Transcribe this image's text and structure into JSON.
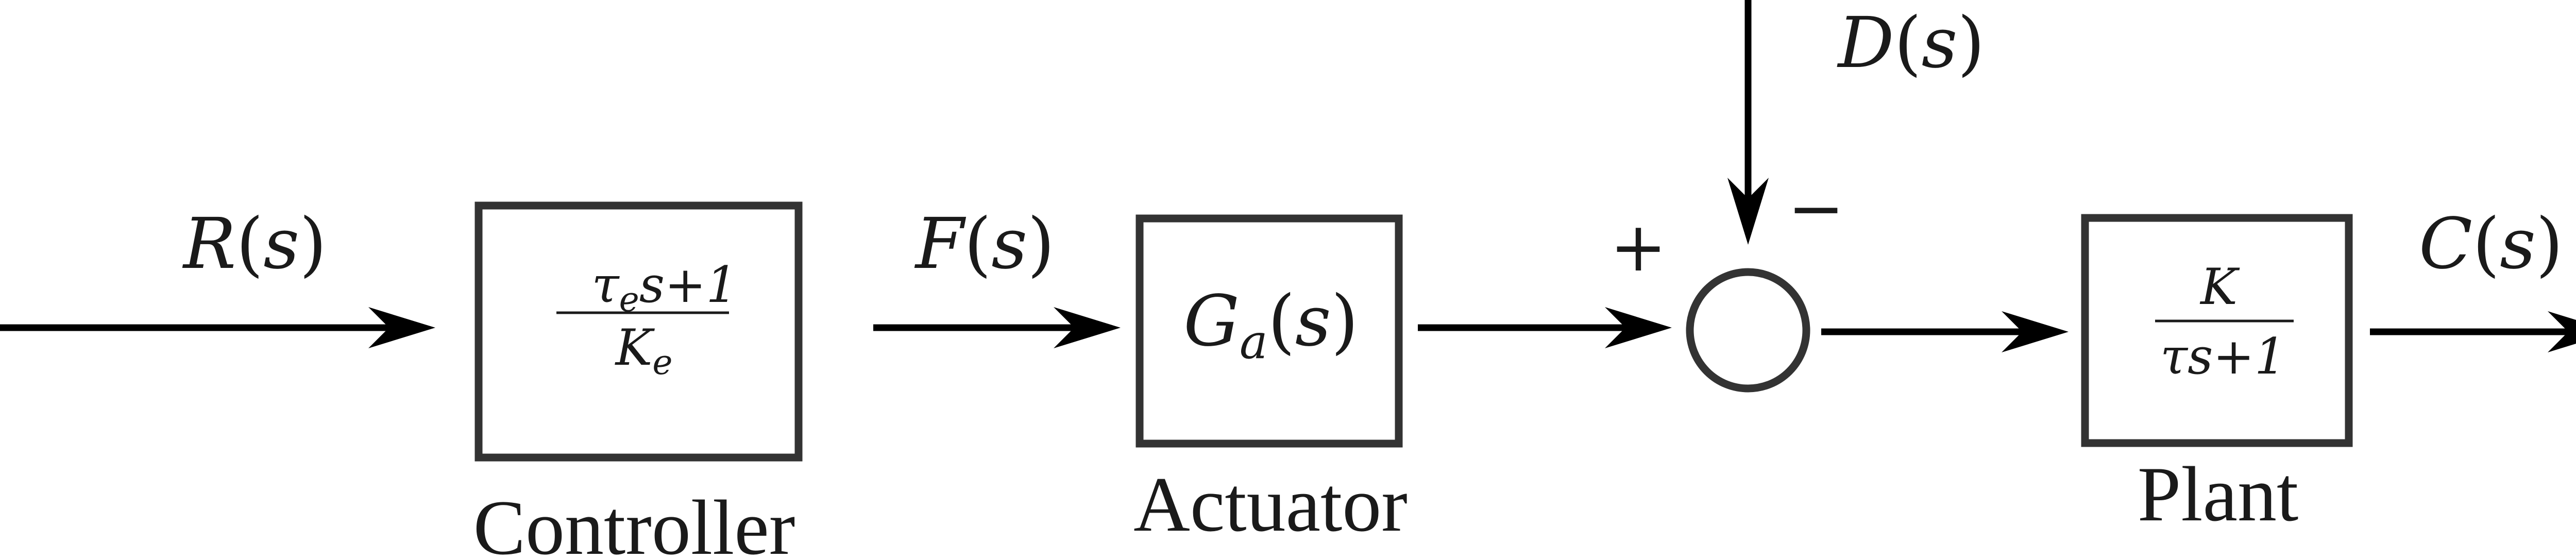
{
  "signals": {
    "reference": {
      "fn": "R",
      "arg": "s"
    },
    "feedforward": {
      "fn": "F",
      "arg": "s"
    },
    "disturbance": {
      "fn": "D",
      "arg": "s"
    },
    "output": {
      "fn": "C",
      "arg": "s"
    }
  },
  "blocks": {
    "controller": {
      "numerator": {
        "tau": "τ",
        "tau_sub": "e",
        "rest": "s+1"
      },
      "denominator": {
        "base": "K",
        "sub": "e"
      },
      "caption": "Controller"
    },
    "actuator": {
      "fn": "G",
      "sub": "a",
      "arg": "s",
      "caption": "Actuator"
    },
    "plant": {
      "numerator": "K",
      "denominator": "τs+1",
      "caption": "Plant"
    }
  },
  "summing_junction": {
    "plus": "+",
    "minus": "−"
  }
}
